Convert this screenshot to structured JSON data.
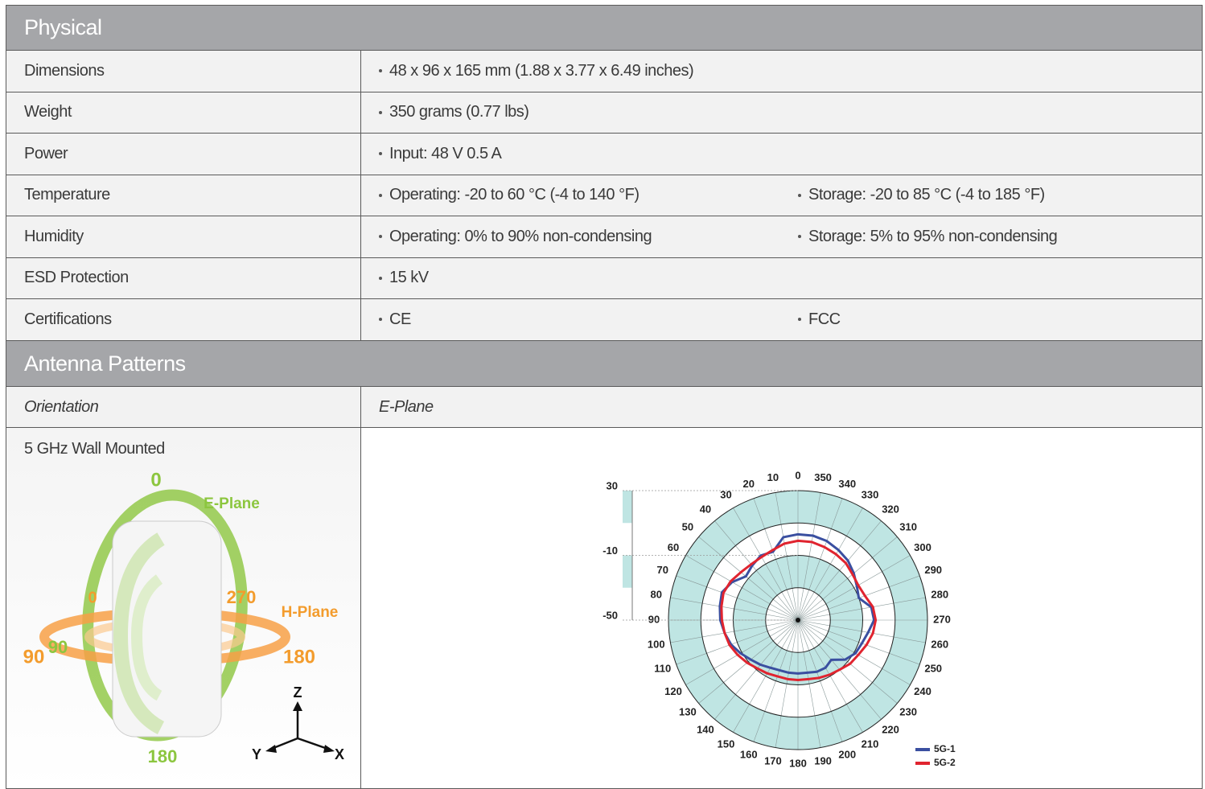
{
  "physical": {
    "title": "Physical",
    "rows": [
      {
        "label": "Dimensions",
        "values": [
          "48 x 96 x 165 mm (1.88 x 3.77 x 6.49 inches)"
        ]
      },
      {
        "label": "Weight",
        "values": [
          "350 grams (0.77 lbs)"
        ]
      },
      {
        "label": "Power",
        "values": [
          "Input: 48 V 0.5 A"
        ]
      },
      {
        "label": "Temperature",
        "values": [
          "Operating: -20 to 60 °C (-4 to 140 °F)",
          "Storage: -20 to 85 °C (-4 to 185 °F)"
        ]
      },
      {
        "label": "Humidity",
        "values": [
          "Operating: 0% to 90% non-condensing",
          "Storage: 5% to 95% non-condensing"
        ]
      },
      {
        "label": "ESD Protection",
        "values": [
          "15 kV"
        ]
      },
      {
        "label": "Certifications",
        "values": [
          "CE",
          "FCC"
        ]
      }
    ]
  },
  "antenna_patterns": {
    "title": "Antenna Patterns",
    "columns": [
      "Orientation",
      "E-Plane"
    ],
    "orientation": "5 GHz Wall Mounted",
    "illustration": {
      "labels": [
        "0",
        "E-Plane",
        "0",
        "270",
        "H-Plane",
        "90",
        "90",
        "180",
        "180",
        "Z",
        "Y",
        "X"
      ]
    },
    "chart": {
      "type": "polar",
      "theta": [
        0,
        10,
        20,
        30,
        40,
        50,
        60,
        70,
        80,
        90,
        100,
        110,
        120,
        130,
        140,
        150,
        160,
        170,
        180,
        190,
        200,
        210,
        220,
        230,
        240,
        250,
        260,
        270,
        280,
        290,
        300,
        310,
        320,
        330,
        340,
        350
      ],
      "rlim": [
        -50,
        30
      ],
      "rticks": [
        30,
        -10,
        -50
      ],
      "series": [
        {
          "name": "5G-1",
          "color": "#3a4fa0",
          "values": [
            3,
            2,
            -5,
            -4,
            -6,
            -8,
            -3,
            0,
            -1,
            -2,
            -4,
            -6,
            -9,
            -12,
            -14,
            -16,
            -17,
            -17,
            -17,
            -17,
            -16,
            -16,
            -18,
            -12,
            -9,
            -8,
            -6,
            -3,
            -4,
            -10,
            -8,
            -5,
            -2,
            0,
            2,
            3
          ]
        },
        {
          "name": "5G-2",
          "color": "#e0242f",
          "values": [
            -1,
            -2,
            -4,
            -5,
            -5,
            -4,
            -2,
            -1,
            -2,
            -3,
            -4,
            -5,
            -7,
            -9,
            -11,
            -12,
            -13,
            -13,
            -13,
            -13,
            -12,
            -11,
            -10,
            -8,
            -7,
            -5,
            -3,
            -2,
            -3,
            -6,
            -7,
            -6,
            -4,
            -3,
            -2,
            -1
          ]
        }
      ]
    }
  }
}
